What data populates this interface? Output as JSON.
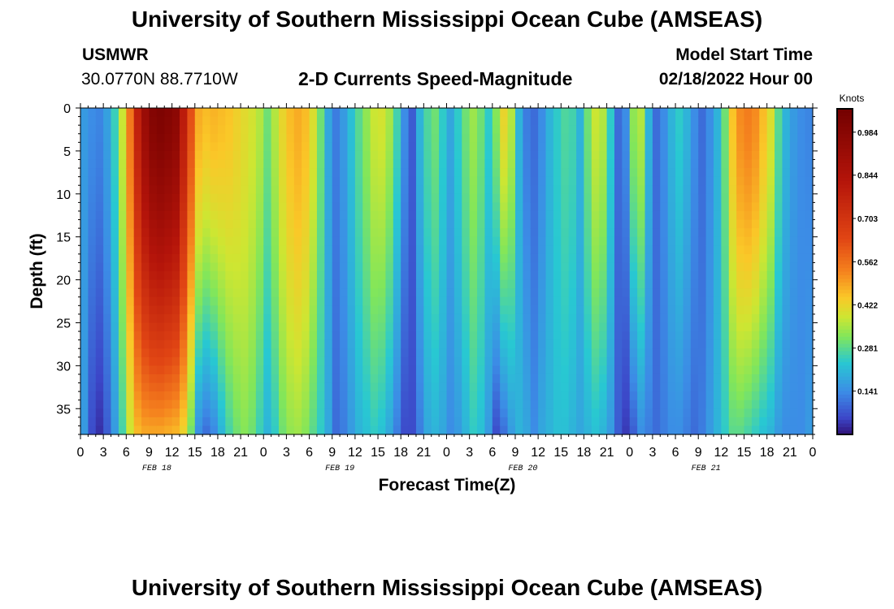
{
  "header": {
    "title": "University of Southern Mississippi Ocean Cube (AMSEAS)",
    "station": "USMWR",
    "coords": "30.0770N  88.7710W",
    "subtitle": "2-D Currents Speed-Magnitude",
    "start_label": "Model Start Time",
    "start_value": "02/18/2022 Hour 00"
  },
  "footer": {
    "title": "University of Southern Mississippi Ocean Cube (AMSEAS)"
  },
  "chart_data": {
    "type": "heatmap",
    "title": "2-D Currents Speed-Magnitude",
    "xlabel": "Forecast Time(Z)",
    "ylabel": "Depth (ft)",
    "x_tick_labels": [
      "0",
      "3",
      "6",
      "9",
      "12",
      "15",
      "18",
      "21",
      "0",
      "3",
      "6",
      "9",
      "12",
      "15",
      "18",
      "21",
      "0",
      "3",
      "6",
      "9",
      "12",
      "15",
      "18",
      "21",
      "0",
      "3",
      "6",
      "9",
      "12",
      "15",
      "18",
      "21",
      "0"
    ],
    "x_range_hours": [
      0,
      96
    ],
    "day_labels": [
      {
        "label": "FEB 18",
        "hour": 10
      },
      {
        "label": "FEB 19",
        "hour": 34
      },
      {
        "label": "FEB 20",
        "hour": 58
      },
      {
        "label": "FEB 21",
        "hour": 82
      }
    ],
    "y_ticks": [
      0,
      5,
      10,
      15,
      20,
      25,
      30,
      35
    ],
    "y_range_ft": [
      0,
      38
    ],
    "colorbar": {
      "label": "Knots",
      "ticks": [
        "0.984",
        "0.844",
        "0.703",
        "0.562",
        "0.422",
        "0.281",
        "0.141"
      ],
      "tick_values": [
        0.984,
        0.844,
        0.703,
        0.562,
        0.422,
        0.281,
        0.141
      ],
      "range": [
        0.0,
        1.06
      ]
    },
    "time_hours": [
      0,
      1,
      2,
      3,
      4,
      5,
      6,
      7,
      8,
      9,
      10,
      11,
      12,
      13,
      14,
      15,
      16,
      17,
      18,
      19,
      20,
      21,
      22,
      23,
      24,
      25,
      26,
      27,
      28,
      29,
      30,
      31,
      32,
      33,
      34,
      35,
      36,
      37,
      38,
      39,
      40,
      41,
      42,
      43,
      44,
      45,
      46,
      47,
      48,
      49,
      50,
      51,
      52,
      53,
      54,
      55,
      56,
      57,
      58,
      59,
      60,
      61,
      62,
      63,
      64,
      65,
      66,
      67,
      68,
      69,
      70,
      71,
      72,
      73,
      74,
      75,
      76,
      77,
      78,
      79,
      80,
      81,
      82,
      83,
      84,
      85,
      86,
      87,
      88,
      89,
      90,
      91,
      92,
      93,
      94,
      95
    ],
    "speed_surface_knots": [
      0.16,
      0.14,
      0.13,
      0.17,
      0.25,
      0.38,
      0.55,
      0.78,
      0.92,
      1.0,
      1.02,
      1.0,
      0.97,
      0.8,
      0.62,
      0.48,
      0.46,
      0.47,
      0.46,
      0.45,
      0.43,
      0.41,
      0.39,
      0.36,
      0.3,
      0.36,
      0.42,
      0.46,
      0.48,
      0.46,
      0.4,
      0.3,
      0.18,
      0.12,
      0.16,
      0.22,
      0.28,
      0.33,
      0.38,
      0.39,
      0.35,
      0.26,
      0.14,
      0.08,
      0.2,
      0.27,
      0.3,
      0.24,
      0.18,
      0.24,
      0.3,
      0.34,
      0.3,
      0.24,
      0.32,
      0.42,
      0.36,
      0.2,
      0.12,
      0.1,
      0.14,
      0.2,
      0.24,
      0.27,
      0.26,
      0.2,
      0.3,
      0.38,
      0.36,
      0.24,
      0.1,
      0.14,
      0.33,
      0.36,
      0.2,
      0.1,
      0.14,
      0.2,
      0.24,
      0.2,
      0.14,
      0.1,
      0.14,
      0.2,
      0.3,
      0.45,
      0.52,
      0.54,
      0.52,
      0.46,
      0.4,
      0.28,
      0.2,
      0.16,
      0.14,
      0.13
    ],
    "speed_bottom_knots": [
      0.16,
      0.06,
      0.03,
      0.08,
      0.16,
      0.26,
      0.38,
      0.46,
      0.48,
      0.48,
      0.48,
      0.47,
      0.46,
      0.42,
      0.3,
      0.14,
      0.1,
      0.13,
      0.2,
      0.26,
      0.3,
      0.32,
      0.3,
      0.25,
      0.2,
      0.24,
      0.3,
      0.33,
      0.34,
      0.32,
      0.28,
      0.24,
      0.18,
      0.1,
      0.12,
      0.16,
      0.2,
      0.22,
      0.24,
      0.22,
      0.18,
      0.12,
      0.06,
      0.06,
      0.12,
      0.18,
      0.2,
      0.18,
      0.14,
      0.16,
      0.2,
      0.24,
      0.22,
      0.16,
      0.06,
      0.1,
      0.16,
      0.2,
      0.18,
      0.14,
      0.18,
      0.2,
      0.22,
      0.22,
      0.2,
      0.18,
      0.2,
      0.22,
      0.2,
      0.16,
      0.08,
      0.04,
      0.08,
      0.14,
      0.12,
      0.1,
      0.12,
      0.14,
      0.14,
      0.12,
      0.1,
      0.12,
      0.16,
      0.2,
      0.24,
      0.28,
      0.28,
      0.26,
      0.24,
      0.22,
      0.2,
      0.16,
      0.14,
      0.14,
      0.14,
      0.16
    ],
    "profile_shape_exponent": 1.4
  }
}
